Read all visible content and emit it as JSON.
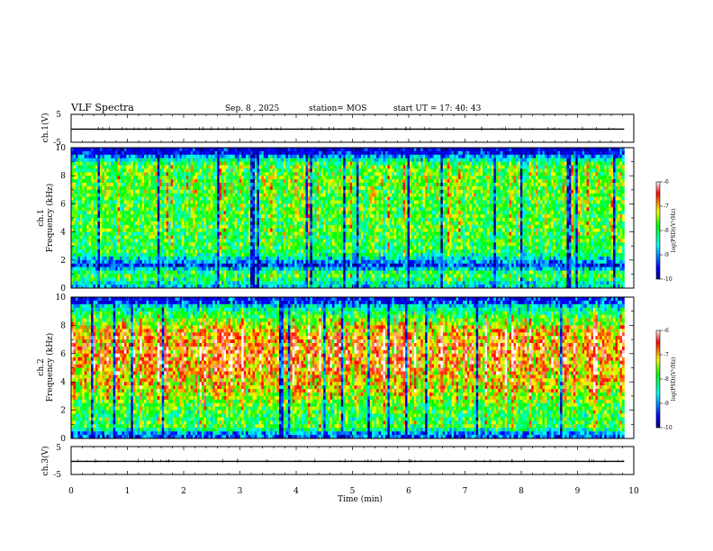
{
  "header": {
    "title": "VLF Spectra",
    "date": "Sep. 8 , 2025",
    "station": "station= MOS",
    "start": "start  UT =   17: 40: 43"
  },
  "colors": {
    "background": "#ffffff",
    "axis": "#000000",
    "colormap": [
      "#000080",
      "#0000ff",
      "#00ffff",
      "#00ff00",
      "#ffff00",
      "#ff0000",
      "#ffffff"
    ]
  },
  "chart_data": [
    {
      "type": "line",
      "name": "ch1-waveform",
      "ylabel": "ch.1(V)",
      "ylim": [
        -5,
        5
      ],
      "yticks": [
        "5",
        "-5"
      ],
      "x": [
        0,
        9.83
      ],
      "values": [
        -0.3,
        -0.3
      ],
      "xlim": [
        0,
        10
      ]
    },
    {
      "type": "heatmap",
      "name": "ch1-spectrogram",
      "ylabel": "ch.1 Frequency (kHz)",
      "ylim": [
        0,
        10
      ],
      "yticks": [
        "0",
        "2",
        "4",
        "6",
        "8",
        "10"
      ],
      "xlim": [
        0,
        10
      ],
      "data_end_min": 9.83,
      "seed": 17,
      "colorbar": {
        "min": -10,
        "max": -6,
        "ticks": [
          "-6",
          "-7",
          "-8",
          "-9",
          "-10"
        ],
        "label": "log(PSD)(V²/Hz)"
      },
      "profile": [
        {
          "f": 0.3,
          "v": 0.35
        },
        {
          "f": 0.8,
          "v": 0.55
        },
        {
          "f": 1.2,
          "v": 0.45
        },
        {
          "f": 1.6,
          "v": 0.15
        },
        {
          "f": 2.5,
          "v": 0.5
        },
        {
          "f": 4,
          "v": 0.55
        },
        {
          "f": 6,
          "v": 0.55
        },
        {
          "f": 7.5,
          "v": 0.6
        },
        {
          "f": 8.8,
          "v": 0.55
        },
        {
          "f": 9.3,
          "v": 0.3
        },
        {
          "f": 9.7,
          "v": 0.1
        }
      ]
    },
    {
      "type": "heatmap",
      "name": "ch2-spectrogram",
      "ylabel": "ch.2 Frequency (kHz)",
      "ylim": [
        0,
        10
      ],
      "yticks": [
        "0",
        "2",
        "4",
        "6",
        "8",
        "10"
      ],
      "xlim": [
        0,
        10
      ],
      "data_end_min": 9.83,
      "seed": 29,
      "colorbar": {
        "min": -10,
        "max": -6,
        "ticks": [
          "-6",
          "-7",
          "-8",
          "-9",
          "-10"
        ],
        "label": "log(PSD)(V²/Hz)"
      },
      "profile": [
        {
          "f": 0.3,
          "v": 0.2
        },
        {
          "f": 0.8,
          "v": 0.55
        },
        {
          "f": 1.6,
          "v": 0.5
        },
        {
          "f": 2.2,
          "v": 0.55
        },
        {
          "f": 3.5,
          "v": 0.7
        },
        {
          "f": 5,
          "v": 0.78
        },
        {
          "f": 6.5,
          "v": 0.8
        },
        {
          "f": 7.6,
          "v": 0.75
        },
        {
          "f": 8.5,
          "v": 0.55
        },
        {
          "f": 9.2,
          "v": 0.4
        },
        {
          "f": 9.7,
          "v": 0.2
        }
      ]
    },
    {
      "type": "line",
      "name": "ch3-waveform",
      "ylabel": "ch.3(V)",
      "ylim": [
        -5,
        5
      ],
      "yticks": [
        "5",
        "-5"
      ],
      "x": [
        0,
        9.83
      ],
      "values": [
        -0.3,
        -0.3
      ],
      "xlim": [
        0,
        10
      ]
    }
  ],
  "xaxis": {
    "label": "Time  (min)",
    "ticks": [
      "0",
      "1",
      "2",
      "3",
      "4",
      "5",
      "6",
      "7",
      "8",
      "9",
      "10"
    ]
  }
}
